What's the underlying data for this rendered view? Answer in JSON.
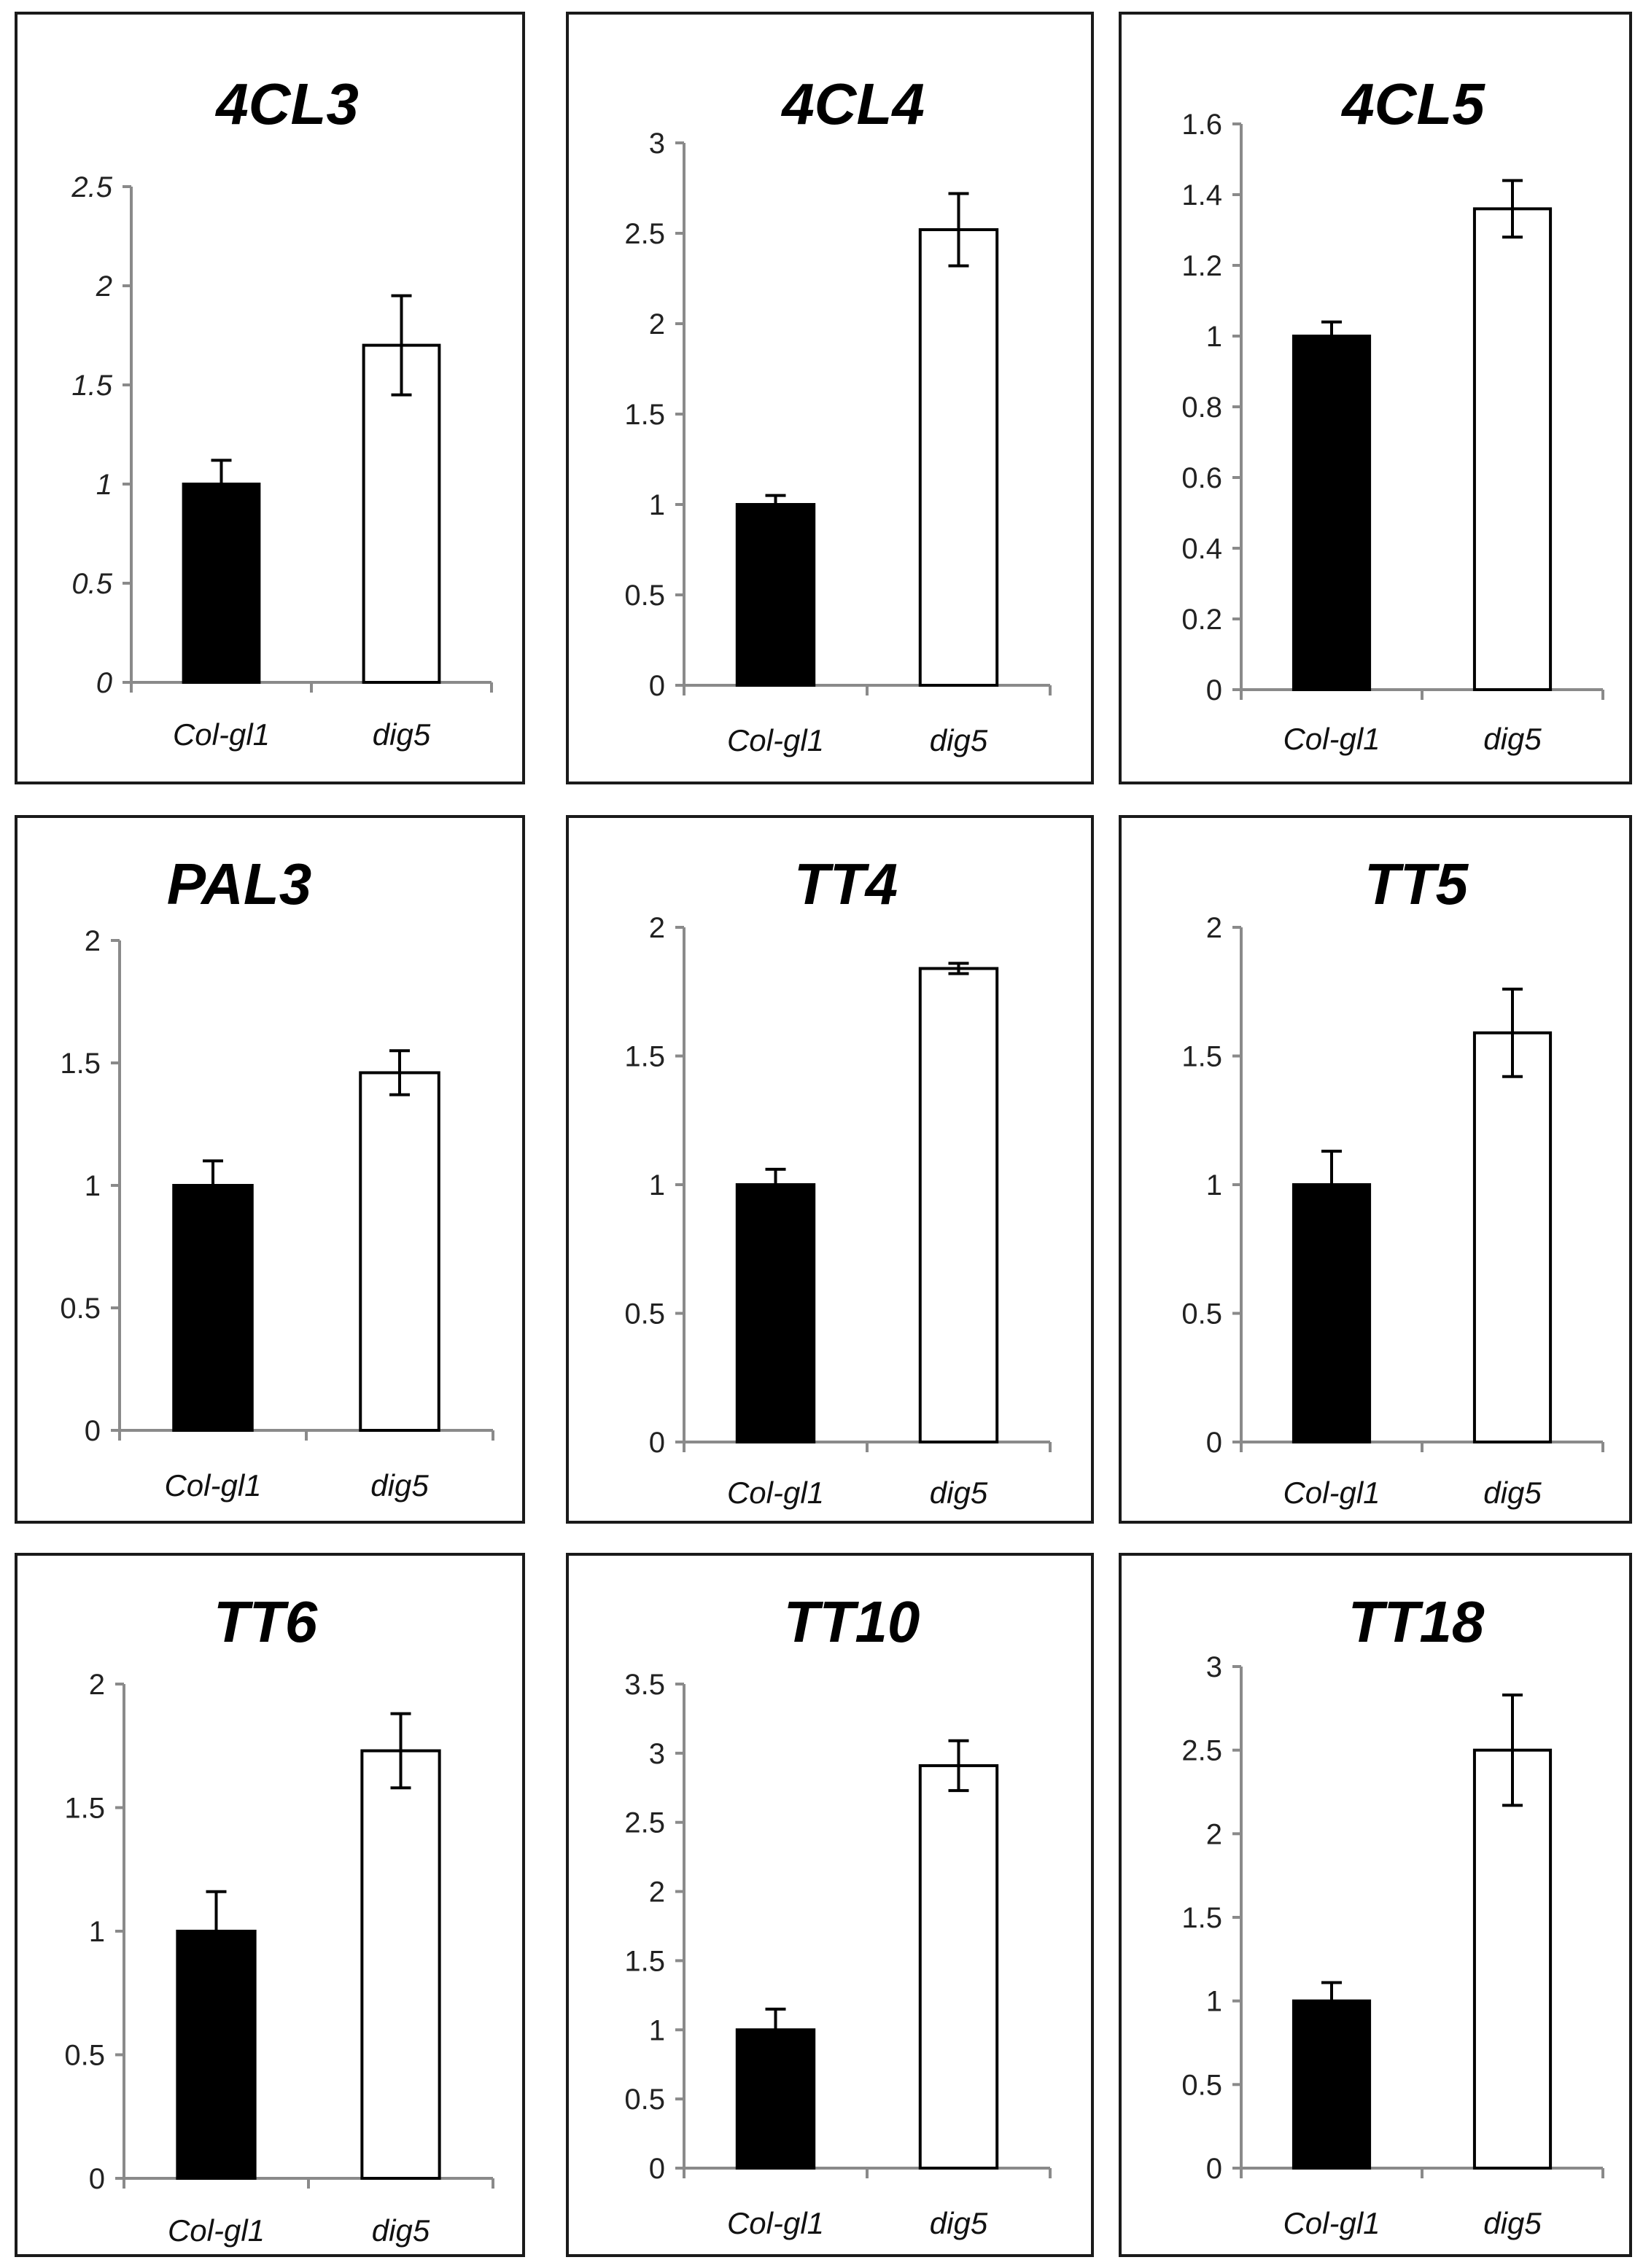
{
  "figure": {
    "categories": [
      "Col-gl1",
      "dig5"
    ],
    "colors": {
      "wild_type": "#000000",
      "mutant": "#ffffff",
      "outline": "#000000"
    }
  },
  "chart_data": [
    {
      "type": "bar",
      "title": "4CL3",
      "categories": [
        "Col-gl1",
        "dig5"
      ],
      "values": [
        1.0,
        1.7
      ],
      "errors": [
        0.12,
        0.25
      ],
      "ylim": [
        0,
        2.5
      ],
      "yticks": [
        "0",
        "0.5",
        "1",
        "1.5",
        "2",
        "2.5"
      ],
      "tick_style": "italic",
      "xlabel": "",
      "ylabel": ""
    },
    {
      "type": "bar",
      "title": "4CL4",
      "categories": [
        "Col-gl1",
        "dig5"
      ],
      "values": [
        1.0,
        2.52
      ],
      "errors": [
        0.05,
        0.2
      ],
      "ylim": [
        0,
        3
      ],
      "yticks": [
        "0",
        "0.5",
        "1",
        "1.5",
        "2",
        "2.5",
        "3"
      ],
      "tick_style": "normal",
      "xlabel": "",
      "ylabel": ""
    },
    {
      "type": "bar",
      "title": "4CL5",
      "categories": [
        "Col-gl1",
        "dig5"
      ],
      "values": [
        1.0,
        1.36
      ],
      "errors": [
        0.04,
        0.08
      ],
      "ylim": [
        0,
        1.6
      ],
      "yticks": [
        "0",
        "0.2",
        "0.4",
        "0.6",
        "0.8",
        "1",
        "1.2",
        "1.4",
        "1.6"
      ],
      "tick_style": "normal",
      "xlabel": "",
      "ylabel": ""
    },
    {
      "type": "bar",
      "title": "PAL3",
      "categories": [
        "Col-gl1",
        "dig5"
      ],
      "values": [
        1.0,
        1.46
      ],
      "errors": [
        0.1,
        0.09
      ],
      "ylim": [
        0,
        2
      ],
      "yticks": [
        "0",
        "0.5",
        "1",
        "1.5",
        "2"
      ],
      "tick_style": "normal",
      "xlabel": "",
      "ylabel": ""
    },
    {
      "type": "bar",
      "title": "TT4",
      "categories": [
        "Col-gl1",
        "dig5"
      ],
      "values": [
        1.0,
        1.84
      ],
      "errors": [
        0.06,
        0.02
      ],
      "ylim": [
        0,
        2
      ],
      "yticks": [
        "0",
        "0.5",
        "1",
        "1.5",
        "2"
      ],
      "tick_style": "normal",
      "xlabel": "",
      "ylabel": ""
    },
    {
      "type": "bar",
      "title": "TT5",
      "categories": [
        "Col-gl1",
        "dig5"
      ],
      "values": [
        1.0,
        1.59
      ],
      "errors": [
        0.13,
        0.17
      ],
      "ylim": [
        0,
        2
      ],
      "yticks": [
        "0",
        "0.5",
        "1",
        "1.5",
        "2"
      ],
      "tick_style": "normal",
      "xlabel": "",
      "ylabel": ""
    },
    {
      "type": "bar",
      "title": "TT6",
      "categories": [
        "Col-gl1",
        "dig5"
      ],
      "values": [
        1.0,
        1.73
      ],
      "errors": [
        0.16,
        0.15
      ],
      "ylim": [
        0,
        2
      ],
      "yticks": [
        "0",
        "0.5",
        "1",
        "1.5",
        "2"
      ],
      "tick_style": "normal",
      "xlabel": "",
      "ylabel": ""
    },
    {
      "type": "bar",
      "title": "TT10",
      "categories": [
        "Col-gl1",
        "dig5"
      ],
      "values": [
        1.0,
        2.91
      ],
      "errors": [
        0.15,
        0.18
      ],
      "ylim": [
        0,
        3.5
      ],
      "yticks": [
        "0",
        "0.5",
        "1",
        "1.5",
        "2",
        "2.5",
        "3",
        "3.5"
      ],
      "tick_style": "normal",
      "xlabel": "",
      "ylabel": ""
    },
    {
      "type": "bar",
      "title": "TT18",
      "categories": [
        "Col-gl1",
        "dig5"
      ],
      "values": [
        1.0,
        2.5
      ],
      "errors": [
        0.11,
        0.33
      ],
      "ylim": [
        0,
        3
      ],
      "yticks": [
        "0",
        "0.5",
        "1",
        "1.5",
        "2",
        "2.5",
        "3"
      ],
      "tick_style": "normal",
      "xlabel": "",
      "ylabel": ""
    }
  ]
}
